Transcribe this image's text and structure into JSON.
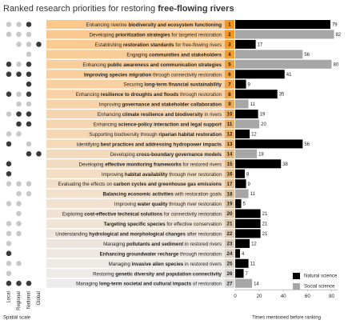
{
  "chart_data": {
    "type": "bar",
    "title": [
      {
        "text": "Ranked research priorities for restoring ",
        "bold": false
      },
      {
        "text": "free-flowing rivers",
        "bold": true
      }
    ],
    "scale_labels": [
      "Local",
      "Regional",
      "National",
      "Global"
    ],
    "scale_title": "Spatial scale",
    "scale_colors": {
      "1": "#c8c8c8",
      "2": "#3a3a3a"
    },
    "x_label": "Times mentioned before ranking",
    "xlim": [
      0,
      85
    ],
    "xticks": [
      0,
      20,
      40,
      60,
      80
    ],
    "priorities": [
      {
        "rank": 1,
        "scales": [
          1,
          1,
          2,
          0
        ],
        "label": [
          {
            "text": "Enhancing riverine "
          },
          {
            "text": "biodiversity and ecosystem functioning",
            "bold": true
          }
        ]
      },
      {
        "rank": 2,
        "scales": [
          1,
          1,
          1,
          0
        ],
        "label": [
          {
            "text": "Developing "
          },
          {
            "text": "prioritization strategies",
            "bold": true
          },
          {
            "text": " for targeted restoration"
          }
        ]
      },
      {
        "rank": 3,
        "scales": [
          0,
          1,
          1,
          2
        ],
        "label": [
          {
            "text": "Establishing "
          },
          {
            "text": "restoration standards",
            "bold": true
          },
          {
            "text": " for free-flowing rivers"
          }
        ]
      },
      {
        "rank": 4,
        "scales": [
          0,
          0,
          1,
          0
        ],
        "label": [
          {
            "text": "Engaging "
          },
          {
            "text": "communities and stakeholders",
            "bold": true
          }
        ]
      },
      {
        "rank": 5,
        "scales": [
          2,
          1,
          2,
          0
        ],
        "label": [
          {
            "text": "Enhancing "
          },
          {
            "text": "public awareness and communication strategies",
            "bold": true
          }
        ]
      },
      {
        "rank": 6,
        "scales": [
          2,
          2,
          2,
          0
        ],
        "label": [
          {
            "text": "Improving species migration",
            "bold": true
          },
          {
            "text": " through connectivity restoration"
          }
        ]
      },
      {
        "rank": 7,
        "scales": [
          0,
          0,
          2,
          0
        ],
        "label": [
          {
            "text": "Securing "
          },
          {
            "text": "long-term financial sustainability",
            "bold": true
          }
        ]
      },
      {
        "rank": 8,
        "scales": [
          2,
          1,
          2,
          0
        ],
        "label": [
          {
            "text": "Enhancing "
          },
          {
            "text": "resilience to droughts and floods",
            "bold": true
          },
          {
            "text": " through restoration"
          }
        ]
      },
      {
        "rank": 9,
        "scales": [
          0,
          1,
          1,
          0
        ],
        "label": [
          {
            "text": "Improving "
          },
          {
            "text": "governance and stakeholder collaboration",
            "bold": true
          }
        ]
      },
      {
        "rank": 10,
        "scales": [
          1,
          2,
          2,
          0
        ],
        "label": [
          {
            "text": "Enhancing "
          },
          {
            "text": "climate resilience and biodiversity",
            "bold": true
          },
          {
            "text": " in rivers"
          }
        ]
      },
      {
        "rank": 11,
        "scales": [
          0,
          2,
          2,
          0
        ],
        "label": [
          {
            "text": "Enhancing "
          },
          {
            "text": "science-policy interaction and legal support",
            "bold": true
          }
        ]
      },
      {
        "rank": 12,
        "scales": [
          1,
          1,
          0,
          0
        ],
        "label": [
          {
            "text": "Supporting biodiversity through "
          },
          {
            "text": "riparian habitat restoration",
            "bold": true
          }
        ]
      },
      {
        "rank": 13,
        "scales": [
          2,
          0,
          1,
          0
        ],
        "label": [
          {
            "text": "Identifying "
          },
          {
            "text": "best practices and addressing hydropower impacts",
            "bold": true
          }
        ]
      },
      {
        "rank": 14,
        "scales": [
          0,
          0,
          2,
          2
        ],
        "label": [
          {
            "text": "Developing "
          },
          {
            "text": "cross-boundary governance models",
            "bold": true
          }
        ]
      },
      {
        "rank": 15,
        "scales": [
          2,
          0,
          0,
          0
        ],
        "label": [
          {
            "text": "Developing "
          },
          {
            "text": "effective monitoring frameworks",
            "bold": true
          },
          {
            "text": " for restored rivers"
          }
        ]
      },
      {
        "rank": 16,
        "scales": [
          2,
          0,
          0,
          0
        ],
        "label": [
          {
            "text": "Improving "
          },
          {
            "text": "habitat availability",
            "bold": true
          },
          {
            "text": " through river restoration"
          }
        ]
      },
      {
        "rank": 17,
        "scales": [
          1,
          1,
          1,
          0
        ],
        "label": [
          {
            "text": "Evaluating the effects on "
          },
          {
            "text": "carbon cycles and greenhouse gas emissions",
            "bold": true
          }
        ]
      },
      {
        "rank": 18,
        "scales": [
          0,
          1,
          1,
          0
        ],
        "label": [
          {
            "text": "Balancing economic activities",
            "bold": true
          },
          {
            "text": " with restoration goals"
          }
        ]
      },
      {
        "rank": 19,
        "scales": [
          1,
          1,
          0,
          0
        ],
        "label": [
          {
            "text": "Improving "
          },
          {
            "text": "water quality",
            "bold": true
          },
          {
            "text": " through river restoration"
          }
        ]
      },
      {
        "rank": 20,
        "scales": [
          0,
          1,
          0,
          0
        ],
        "label": [
          {
            "text": "Exploring "
          },
          {
            "text": "cost-effective technical solutions",
            "bold": true
          },
          {
            "text": " for connectivity restoration"
          }
        ]
      },
      {
        "rank": 21,
        "scales": [
          1,
          1,
          0,
          0
        ],
        "label": [
          {
            "text": "Targeting specific species",
            "bold": true
          },
          {
            "text": " for effective conservation"
          }
        ]
      },
      {
        "rank": 22,
        "scales": [
          1,
          1,
          0,
          0
        ],
        "label": [
          {
            "text": "Understanding "
          },
          {
            "text": "hydrological and morphological changes",
            "bold": true
          },
          {
            "text": " after restoration"
          }
        ]
      },
      {
        "rank": 23,
        "scales": [
          1,
          0,
          0,
          0
        ],
        "label": [
          {
            "text": "Managing "
          },
          {
            "text": "pollutants and sediment",
            "bold": true
          },
          {
            "text": " in restored rivers"
          }
        ]
      },
      {
        "rank": 24,
        "scales": [
          2,
          0,
          0,
          0
        ],
        "label": [
          {
            "text": "Enhancing groundwater recharge",
            "bold": true
          },
          {
            "text": " through restoration"
          }
        ]
      },
      {
        "rank": 25,
        "scales": [
          1,
          1,
          0,
          0
        ],
        "label": [
          {
            "text": "Managing "
          },
          {
            "text": "invasive alien species",
            "bold": true
          },
          {
            "text": " in restored rivers"
          }
        ]
      },
      {
        "rank": 26,
        "scales": [
          1,
          0,
          0,
          0
        ],
        "label": [
          {
            "text": "Restoring "
          },
          {
            "text": "genetic diversity and population connectivity",
            "bold": true
          }
        ]
      },
      {
        "rank": 27,
        "scales": [
          2,
          2,
          2,
          0
        ],
        "label": [
          {
            "text": "Managing "
          },
          {
            "text": "long-term societal and cultural impacts",
            "bold": true
          },
          {
            "text": " of restoration"
          }
        ]
      }
    ],
    "series": [
      {
        "name": "Natural science",
        "color": "#000000",
        "values": [
          79,
          null,
          17,
          null,
          null,
          41,
          9,
          35,
          null,
          19,
          null,
          12,
          56,
          null,
          38,
          8,
          9,
          null,
          5,
          21,
          21,
          21,
          12,
          4,
          11,
          7,
          null
        ]
      },
      {
        "name": "Social science",
        "color": "#a6a6a6",
        "values": [
          null,
          82,
          null,
          56,
          80,
          null,
          null,
          null,
          11,
          null,
          20,
          null,
          null,
          18,
          null,
          null,
          null,
          11,
          null,
          null,
          null,
          null,
          null,
          null,
          null,
          null,
          14
        ]
      }
    ]
  }
}
